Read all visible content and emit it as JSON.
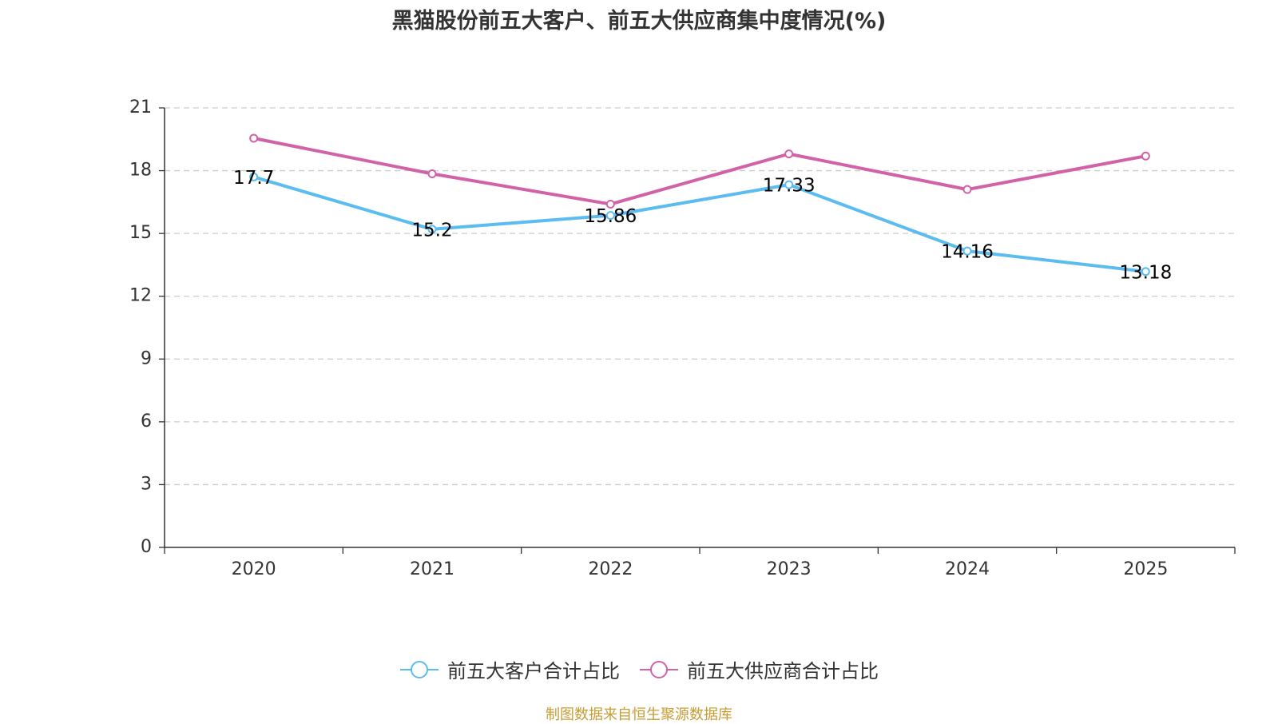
{
  "chart_data": {
    "type": "line",
    "title": "黑猫股份前五大客户、前五大供应商集中度情况(%)",
    "xlabel": "",
    "ylabel": "",
    "categories": [
      "2020",
      "2021",
      "2022",
      "2023",
      "2024",
      "2025"
    ],
    "ylim": [
      0,
      21
    ],
    "yticks": [
      0,
      3,
      6,
      9,
      12,
      15,
      18,
      21
    ],
    "grid": true,
    "legend_position": "bottom-center",
    "series": [
      {
        "name": "前五大客户合计占比",
        "color": "#5bbcf0",
        "values": [
          17.7,
          15.2,
          15.86,
          17.33,
          14.16,
          13.18
        ],
        "data_labels": [
          "17.7",
          "15.2",
          "15.86",
          "17.33",
          "14.16",
          "13.18"
        ]
      },
      {
        "name": "前五大供应商合计占比",
        "color": "#d262a8",
        "values": [
          19.55,
          17.85,
          16.4,
          18.8,
          17.1,
          18.7
        ]
      }
    ]
  },
  "legend": {
    "items": [
      {
        "label": "前五大客户合计占比"
      },
      {
        "label": "前五大供应商合计占比"
      }
    ]
  },
  "source": "制图数据来自恒生聚源数据库"
}
